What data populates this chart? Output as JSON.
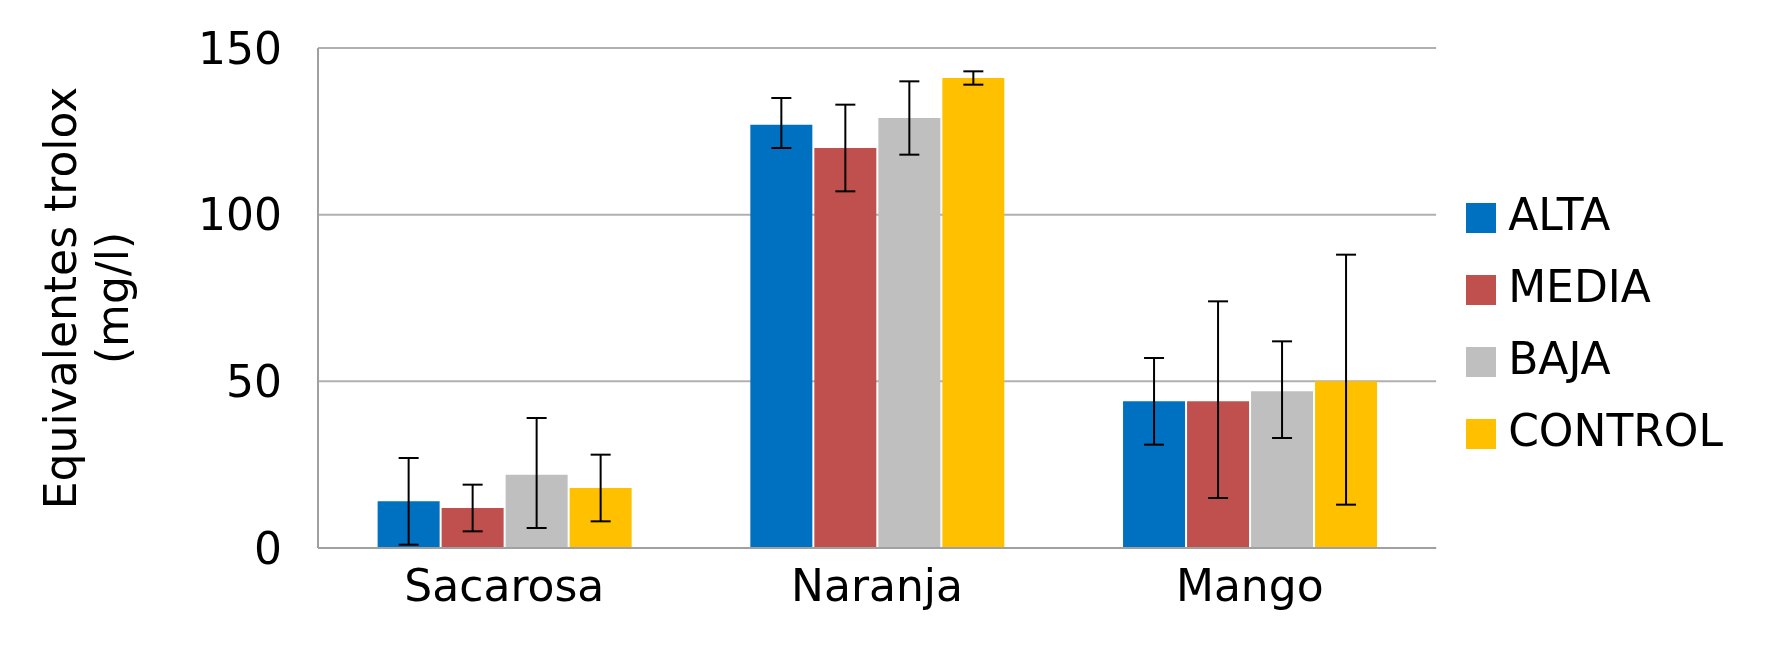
{
  "chart_data": {
    "type": "bar",
    "ylabel": "Equivalentes trolox (mg/l)",
    "categories": [
      "Sacarosa",
      "Naranja",
      "Mango"
    ],
    "series": [
      {
        "name": "ALTA",
        "color": "#0070c0",
        "values": [
          14,
          127,
          44
        ],
        "errors": [
          [
            1,
            27
          ],
          [
            120,
            135
          ],
          [
            31,
            57
          ]
        ]
      },
      {
        "name": "MEDIA",
        "color": "#c0504d",
        "values": [
          12,
          120,
          44
        ],
        "errors": [
          [
            5,
            19
          ],
          [
            107,
            133
          ],
          [
            15,
            74
          ]
        ]
      },
      {
        "name": "BAJA",
        "color": "#bfbfbf",
        "values": [
          22,
          129,
          47
        ],
        "errors": [
          [
            6,
            39
          ],
          [
            118,
            140
          ],
          [
            33,
            62
          ]
        ]
      },
      {
        "name": "CONTROL",
        "color": "#ffc000",
        "values": [
          18,
          141,
          50
        ],
        "errors": [
          [
            8,
            28
          ],
          [
            139,
            143
          ],
          [
            13,
            88
          ]
        ]
      }
    ],
    "ylim": [
      0,
      150
    ],
    "yticks": [
      0,
      50,
      100,
      150
    ],
    "grid": "y",
    "legend": "right"
  }
}
